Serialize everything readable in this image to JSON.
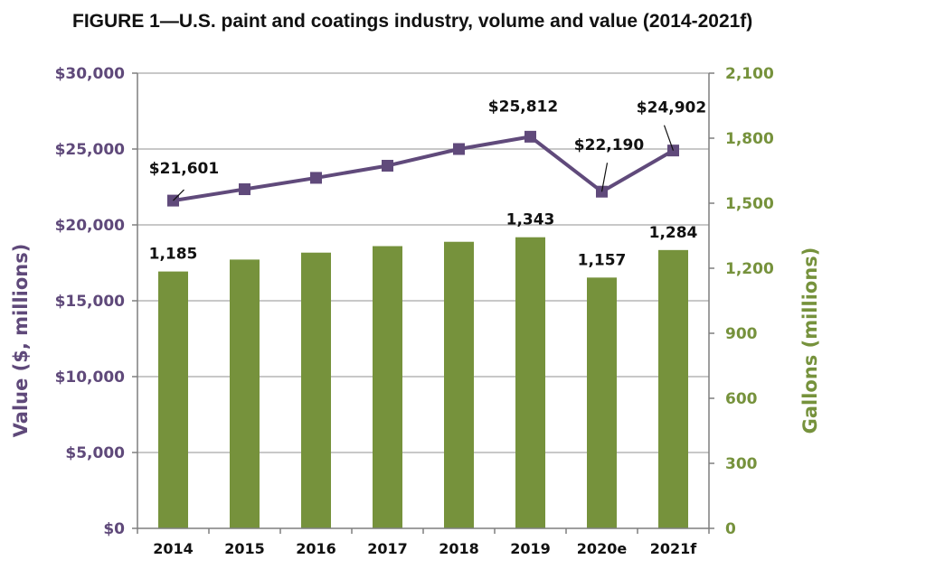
{
  "chart_data": {
    "type": "bar",
    "title": "FIGURE 1—U.S. paint and coatings industry, volume and value (2014-2021f)",
    "categories": [
      "2014",
      "2015",
      "2016",
      "2017",
      "2018",
      "2019",
      "2020e",
      "2021f"
    ],
    "ylabel_left": "Value ($, millions)",
    "ylabel_right": "Gallons (millions)",
    "ylim_left": [
      0,
      30000
    ],
    "ylim_right": [
      0,
      2100
    ],
    "yticks_left": [
      "$0",
      "$5,000",
      "$10,000",
      "$15,000",
      "$20,000",
      "$25,000",
      "$30,000"
    ],
    "yticks_left_values": [
      0,
      5000,
      10000,
      15000,
      20000,
      25000,
      30000
    ],
    "yticks_right": [
      "0",
      "300",
      "600",
      "900",
      "1,200",
      "1,500",
      "1,800",
      "2,100"
    ],
    "yticks_right_values": [
      0,
      300,
      600,
      900,
      1200,
      1500,
      1800,
      2100
    ],
    "grid": true,
    "series": [
      {
        "type": "bar",
        "axis": "right",
        "color": "#76923c",
        "values": [
          1185,
          1240,
          1272,
          1302,
          1322,
          1343,
          1157,
          1284
        ],
        "data_labels": [
          "1,185",
          "",
          "",
          "",
          "",
          "1,343",
          "1,157",
          "1,284"
        ]
      },
      {
        "type": "line",
        "axis": "left",
        "color": "#604a7b",
        "marker": "square",
        "values": [
          21601,
          22350,
          23100,
          23900,
          25000,
          25812,
          22190,
          24902
        ],
        "data_labels": [
          "$21,601",
          "",
          "",
          "",
          "",
          "$25,812",
          "$22,190",
          "$24,902"
        ]
      }
    ],
    "colors": {
      "value_axis": "#5f497a",
      "gallons_axis": "#76923c",
      "gridline": "#a6a6a6",
      "axis_line": "#7f7f7f"
    }
  }
}
